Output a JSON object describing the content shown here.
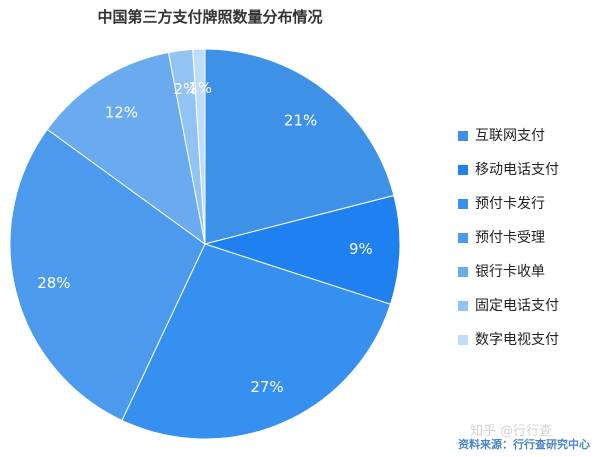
{
  "chart_data": {
    "type": "pie",
    "title": "中国第三方支付牌照数量分布情况",
    "categories": [
      "互联网支付",
      "移动电话支付",
      "预付卡发行",
      "预付卡受理",
      "银行卡收单",
      "固定电话支付",
      "数字电视支付"
    ],
    "values": [
      21,
      9,
      27,
      28,
      12,
      2,
      1
    ],
    "value_labels": [
      "21%",
      "9%",
      "27%",
      "28%",
      "12%",
      "2%",
      "1%"
    ],
    "colors": [
      "#3d92e8",
      "#1f80f0",
      "#3690f0",
      "#4b9aed",
      "#69abee",
      "#92c4f3",
      "#bfdcf8"
    ],
    "legend_placement": "right"
  },
  "watermark": "知乎 @行行查",
  "source_note": "资料来源：行行查研究中心"
}
